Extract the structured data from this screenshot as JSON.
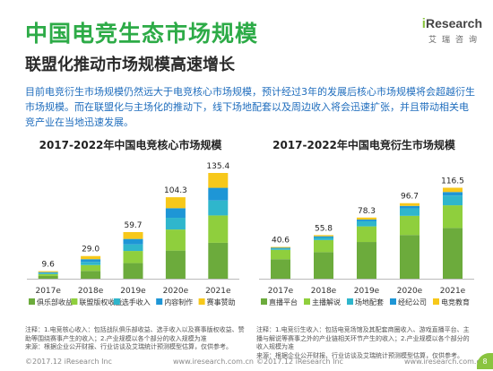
{
  "header": {
    "title": "中国电竞生态市场规模",
    "subtitle": "联盟化推动市场规模高速增长",
    "logo_brand_i": "i",
    "logo_brand": "Research",
    "logo_cn": "艾瑞咨询"
  },
  "description": "目前电竞衍生市场规模仍然远大于电竞核心市场规模，预计经过3年的发展后核心市场规模将会超越衍生市场规模。而在联盟化与主场化的推动下，线下场地配套以及周边收入将会迅速扩张，并且带动相关电竞产业在当地迅速发展。",
  "chart_data": [
    {
      "type": "bar",
      "title": "2017-2022年中国电竞核心市场规模",
      "categories": [
        "2017e",
        "2018e",
        "2019e",
        "2020e",
        "2021e"
      ],
      "totals": [
        9.6,
        29.0,
        59.7,
        104.3,
        135.4
      ],
      "series": [
        {
          "name": "俱乐部收益",
          "color": "#6cab3c",
          "values": [
            3.5,
            10.0,
            20.0,
            36.0,
            46.0
          ]
        },
        {
          "name": "联盟版权收益",
          "color": "#8fcf3d",
          "values": [
            2.5,
            7.5,
            15.5,
            27.0,
            35.0
          ]
        },
        {
          "name": "选手收入",
          "color": "#2fb6cc",
          "values": [
            1.2,
            4.0,
            8.4,
            15.0,
            19.2
          ]
        },
        {
          "name": "内容制作",
          "color": "#1e96d6",
          "values": [
            1.2,
            3.5,
            7.0,
            12.3,
            16.2
          ]
        },
        {
          "name": "赛事赞助",
          "color": "#f7c81a",
          "values": [
            1.2,
            4.0,
            8.8,
            14.0,
            19.0
          ]
        }
      ],
      "ylim": [
        0,
        140
      ]
    },
    {
      "type": "bar",
      "title": "2017-2022年中国电竞衍生市场规模",
      "categories": [
        "2017e",
        "2018e",
        "2019e",
        "2020e",
        "2021e"
      ],
      "totals": [
        40.6,
        55.8,
        78.3,
        96.7,
        116.5
      ],
      "series": [
        {
          "name": "直播平台",
          "color": "#6cab3c",
          "values": [
            25.0,
            34.0,
            47.0,
            56.0,
            65.0
          ]
        },
        {
          "name": "主播解说",
          "color": "#8fcf3d",
          "values": [
            12.0,
            15.5,
            20.0,
            24.5,
            29.0
          ]
        },
        {
          "name": "场地配套",
          "color": "#2fb6cc",
          "values": [
            1.6,
            3.3,
            6.5,
            9.5,
            12.5
          ]
        },
        {
          "name": "经纪公司",
          "color": "#1e96d6",
          "values": [
            1.0,
            1.5,
            2.3,
            3.2,
            4.5
          ]
        },
        {
          "name": "电竞教育",
          "color": "#f7c81a",
          "values": [
            1.0,
            1.5,
            2.5,
            3.5,
            5.5
          ]
        }
      ],
      "ylim": [
        0,
        140
      ]
    }
  ],
  "notes": {
    "left": [
      "注释：1.电竞核心收入：包括战队俱乐部收益、选手收入以及赛事版权收益、赞助等围绕赛事产生的收入；2.产业规模以各个部分的收入规模为准",
      "来源：根据企业公开财报、行业访谈及艾瑞统计预测模型估算，仅供参考。"
    ],
    "right": [
      "注释：1.电竞衍生收入：包括电竞场馆及其配套商圈收入、游戏直播平台、主播与解说等赛事之外的产业链相关环节产生的收入；2.产业规模以各个部分的收入规模为准",
      "来源：根据企业公开财报、行业访谈及艾瑞统计预测模型估算，仅供参考。"
    ]
  },
  "footer": {
    "copyright": "©2017.12 iResearch Inc",
    "site": "www.iresearch.com.cn"
  },
  "page_number": "8"
}
